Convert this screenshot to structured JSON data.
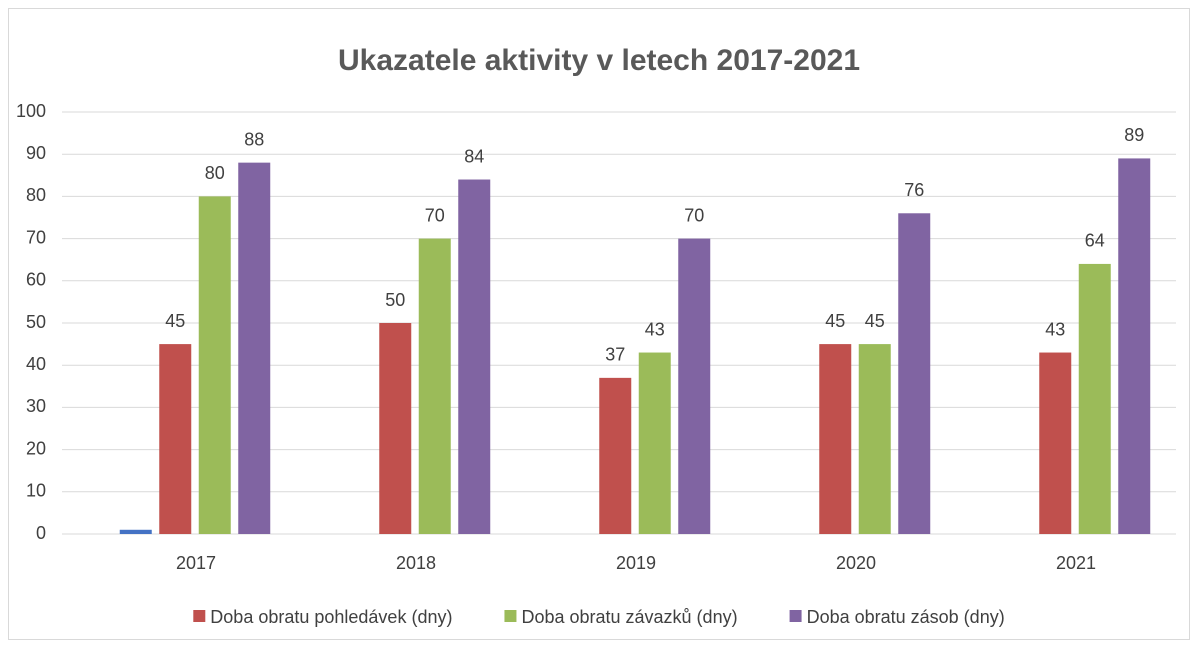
{
  "chart_data": {
    "type": "bar",
    "title": "Ukazatele aktivity v letech 2017-2021",
    "categories": [
      "2017",
      "2018",
      "2019",
      "2020",
      "2021"
    ],
    "series": [
      {
        "color": "#4472c4",
        "values": [
          1,
          null,
          null,
          null,
          null
        ]
      },
      {
        "name": "Doba obratu pohledávek (dny)",
        "color": "#c0504d",
        "values": [
          45,
          50,
          37,
          45,
          43
        ]
      },
      {
        "name": "Doba obratu závazků (dny)",
        "color": "#9bbb59",
        "values": [
          80,
          70,
          43,
          45,
          64
        ]
      },
      {
        "name": "Doba obratu zásob (dny)",
        "color": "#8064a2",
        "values": [
          88,
          84,
          70,
          76,
          89
        ]
      }
    ],
    "ylim": [
      0,
      100
    ],
    "yticks": [
      0,
      10,
      20,
      30,
      40,
      50,
      60,
      70,
      80,
      90,
      100
    ],
    "grid": true,
    "legend": "bottom"
  }
}
